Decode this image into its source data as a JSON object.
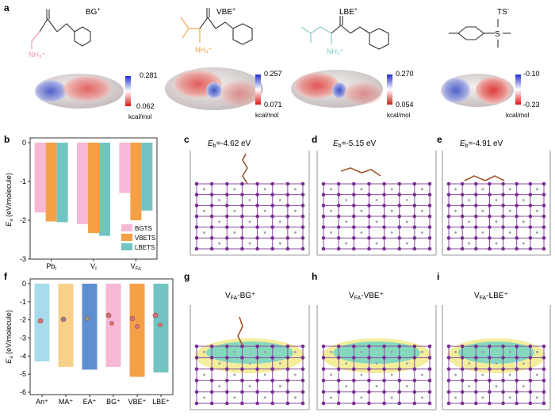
{
  "panel_labels": [
    "a",
    "b",
    "c",
    "d",
    "e",
    "f",
    "g",
    "h",
    "i"
  ],
  "molecules": [
    {
      "name_base": "BG",
      "charge": "+",
      "amine": "NH₃⁺",
      "esp_max": "0.281",
      "esp_min": "0.062",
      "unit": "kcal/mol",
      "color": "#f08fae"
    },
    {
      "name_base": "VBE",
      "charge": "+",
      "amine": "NH₃⁺",
      "esp_max": "0.257",
      "esp_min": "0.071",
      "unit": "kcal/mol",
      "color": "#f0a13c"
    },
    {
      "name_base": "LBE",
      "charge": "+",
      "amine": "NH₃⁺",
      "esp_max": "0.270",
      "esp_min": "0.054",
      "unit": "kcal/mol",
      "color": "#7cc9c9"
    },
    {
      "name_base": "TS",
      "charge": "-",
      "amine": "",
      "esp_max": "-0.10",
      "esp_min": "-0.23",
      "unit": "kcal/mol",
      "color": "#333333"
    }
  ],
  "ts_anion_text": "S",
  "slabs_top": [
    {
      "label_prefix": "E",
      "label_sub": "b",
      "value": "=-4.62 eV"
    },
    {
      "label_prefix": "E",
      "label_sub": "b",
      "value": "=-5.15 eV"
    },
    {
      "label_prefix": "E",
      "label_sub": "b",
      "value": "=-4.91 eV"
    }
  ],
  "slabs_bottom": [
    {
      "title": "V",
      "sub": "FA",
      "suffix": "-BG⁺"
    },
    {
      "title": "V",
      "sub": "FA",
      "suffix": "-VBE⁺"
    },
    {
      "title": "V",
      "sub": "FA",
      "suffix": "-LBE⁺"
    }
  ],
  "chart_data": [
    {
      "type": "bar",
      "ylabel": "E_a (eV/molecule)",
      "ylabel_main": "E",
      "ylabel_sub": "a",
      "ylabel_rest": " (eV/molecule)",
      "ylim": [
        -3,
        0
      ],
      "yticks": [
        0,
        -1,
        -2,
        -3
      ],
      "ytick_labels": [
        "0",
        "-1",
        "-2",
        "-3"
      ],
      "categories": [
        "Pb_I",
        "V_I",
        "V_FA"
      ],
      "category_main": [
        "Pb",
        "V",
        "V"
      ],
      "category_sub": [
        "I",
        "I",
        "FA"
      ],
      "series": [
        {
          "name": "BGTS",
          "color": "#f7b8d6",
          "values": [
            -1.8,
            -2.1,
            -1.3
          ]
        },
        {
          "name": "VBETS",
          "color": "#f6a046",
          "values": [
            -2.03,
            -2.33,
            -2.0
          ]
        },
        {
          "name": "LBETS",
          "color": "#72c4c2",
          "values": [
            -2.05,
            -2.4,
            -1.75
          ]
        }
      ],
      "legend_position": "bottom-right",
      "grid": false
    },
    {
      "type": "bar",
      "ylabel": "E_a (eV/molecule)",
      "ylabel_main": "E",
      "ylabel_sub": "a",
      "ylabel_rest": " (eV/molecule)",
      "ylim": [
        -6,
        0
      ],
      "yticks": [
        0,
        -1,
        -2,
        -3,
        -4,
        -5,
        -6
      ],
      "ytick_labels": [
        "0",
        "-1",
        "-2",
        "-3",
        "-4",
        "-5",
        "-6"
      ],
      "categories": [
        "An⁺",
        "MA⁺",
        "EA⁺",
        "BG⁺",
        "VBE⁺",
        "LBE⁺"
      ],
      "colors": [
        "#a8dcec",
        "#f7d08a",
        "#5e8fd0",
        "#f7b8d6",
        "#f6a046",
        "#72c4c2"
      ],
      "values": [
        -4.3,
        -4.6,
        -4.75,
        -4.6,
        -5.15,
        -4.91
      ],
      "grid": false
    }
  ]
}
